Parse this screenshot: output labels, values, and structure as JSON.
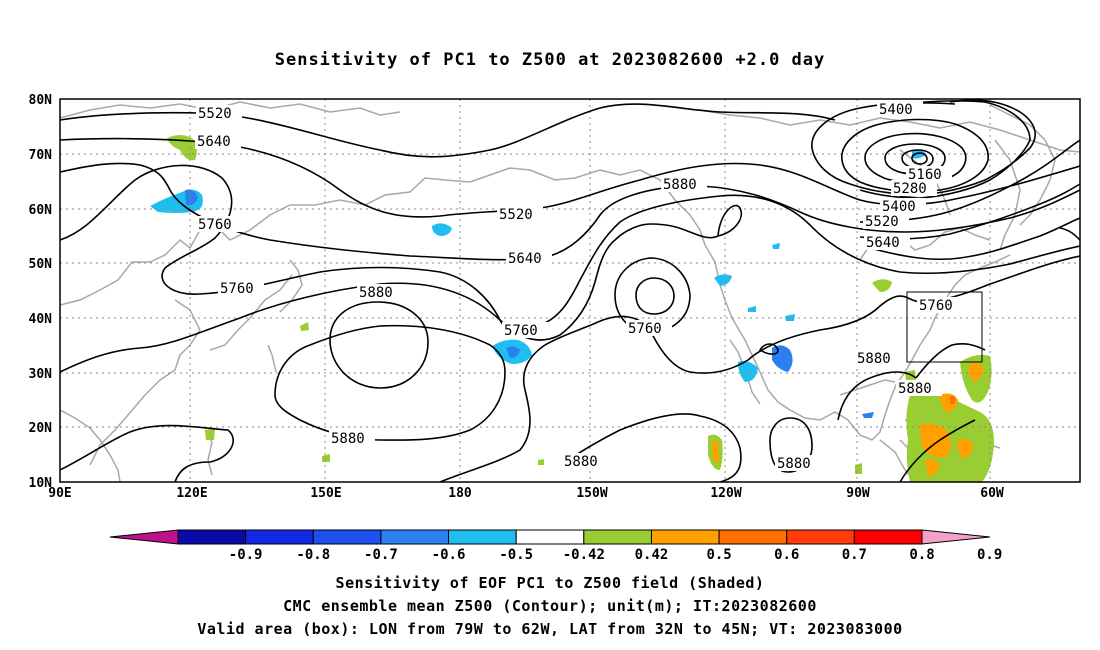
{
  "title": "Sensitivity of PC1 to Z500 at 2023082600 +2.0 day",
  "axes": {
    "lon_labels": [
      "90E",
      "120E",
      "150E",
      "180",
      "150W",
      "120W",
      "90W",
      "60W"
    ],
    "lat_labels": [
      "10N",
      "20N",
      "30N",
      "40N",
      "50N",
      "60N",
      "70N",
      "80N"
    ]
  },
  "contour_labels": [
    "5520",
    "5640",
    "5760",
    "5520",
    "5640",
    "5760",
    "5880",
    "5760",
    "5760",
    "5880",
    "5880",
    "5880",
    "5880",
    "5400",
    "5160",
    "5280",
    "5400",
    "5520",
    "5640",
    "5760",
    "5880",
    "5880"
  ],
  "colorbar": {
    "labels": [
      "-0.9",
      "-0.8",
      "-0.7",
      "-0.6",
      "-0.5",
      "-0.42",
      "0.42",
      "0.5",
      "0.6",
      "0.7",
      "0.8",
      "0.9"
    ],
    "colors": [
      "#c0108c",
      "#0a0aa8",
      "#1428e6",
      "#1e50f0",
      "#2a80f0",
      "#20bef0",
      "#ffffff",
      "#9acd32",
      "#ffa000",
      "#ff7000",
      "#ff3c0a",
      "#ff0000",
      "#f4a0c8"
    ]
  },
  "captions": {
    "line1": "Sensitivity of EOF PC1 to Z500 field (Shaded)",
    "line2": "CMC ensemble mean Z500 (Contour); unit(m); IT:2023082600",
    "line3": "Valid area (box): LON from 79W to 62W, LAT from 32N to 45N; VT: 2023083000"
  }
}
